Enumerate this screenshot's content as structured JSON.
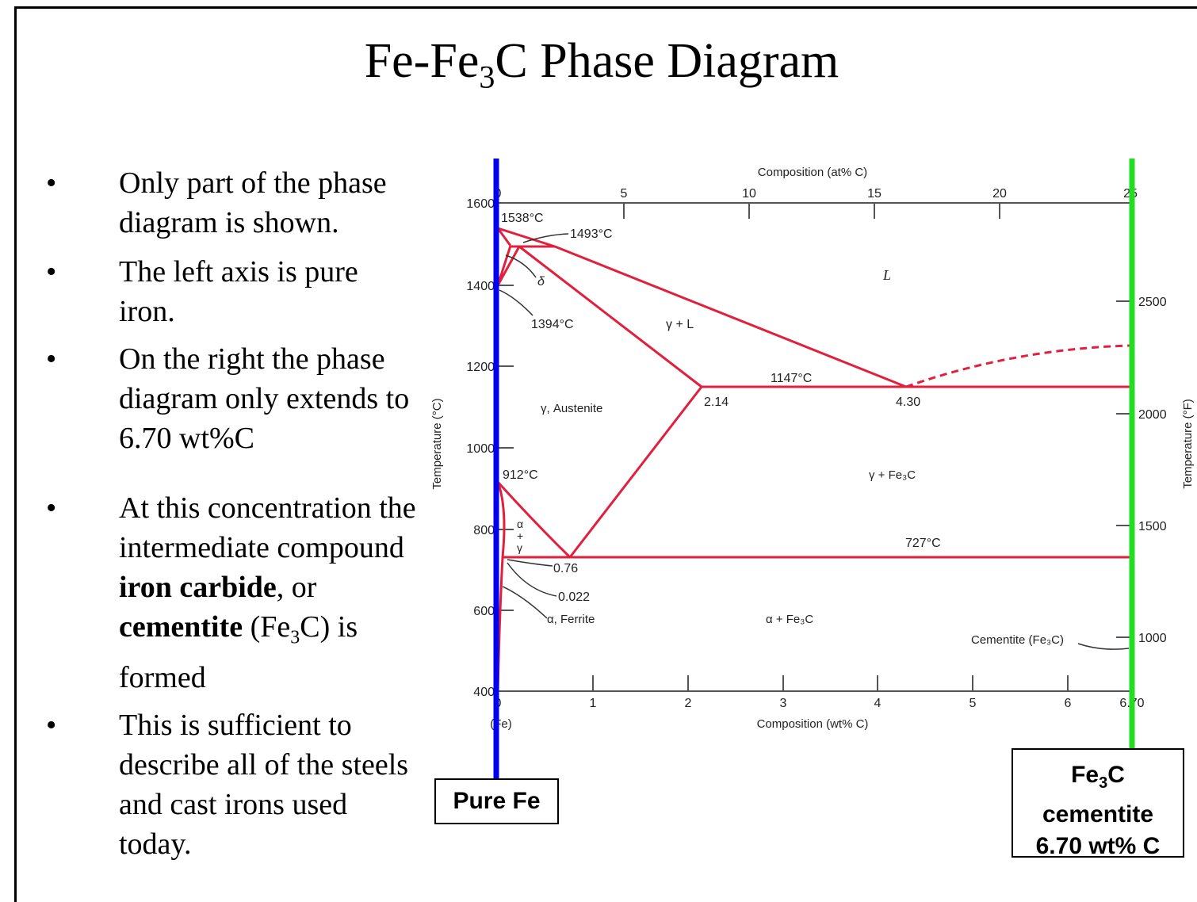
{
  "slide": {
    "title_prefix": "Fe-Fe",
    "title_sub": "3",
    "title_suffix": "C Phase Diagram"
  },
  "bullets": {
    "b1": "Only part of the phase diagram is shown.",
    "b2": "The left axis is pure iron.",
    "b3": "On the right the phase diagram only extends to 6.70 wt%C",
    "b4_pre": "At this concentration the intermediate compound ",
    "b4_bold1": "iron carbide",
    "b4_mid": ", or ",
    "b4_bold2": "cementite",
    "b4_paren": " (Fe",
    "b4_sub": "3",
    "b4_post": "C) is formed",
    "b5": "This is sufficient to describe all of the steels and cast irons used today.",
    "bullet_glyph": "•"
  },
  "diagram": {
    "top_axis_label": "Composition (at% C)",
    "bottom_axis_label": "Composition (wt% C)",
    "left_axis_label": "Temperature (°C)",
    "right_axis_label": "Temperature (°F)",
    "top_ticks": [
      "0",
      "5",
      "10",
      "15",
      "20",
      "25"
    ],
    "bottom_ticks": [
      "0",
      "1",
      "2",
      "3",
      "4",
      "5",
      "6",
      "6.70"
    ],
    "bottom_fe_label": "(Fe)",
    "left_ticks": [
      "1600",
      "1400",
      "1200",
      "1000",
      "800",
      "600",
      "400"
    ],
    "right_ticks": [
      "2500",
      "2000",
      "1500",
      "1000"
    ],
    "labels": {
      "t1538": "1538°C",
      "t1493": "1493°C",
      "delta": "δ",
      "t1394": "1394°C",
      "L": "L",
      "gammaL": "γ + L",
      "t1147": "1147°C",
      "c214": "2.14",
      "c430": "4.30",
      "austenite": "γ, Austenite",
      "t912": "912°C",
      "gamma_fe3c": "γ + Fe₃C",
      "alpha_plus_gamma_a": "α",
      "alpha_plus_gamma_p": "+",
      "alpha_plus_gamma_g": "γ",
      "t727": "727°C",
      "c076": "0.76",
      "c0022": "0.022",
      "ferrite": "α, Ferrite",
      "alpha_fe3c": "α + Fe₃C",
      "cementite": "Cementite (Fe₃C)"
    },
    "phase_line_color": "#e0203c",
    "left_bar_color": "#0000ee",
    "right_bar_color": "#22dd22"
  },
  "boxes": {
    "pure_fe": "Pure Fe",
    "fe3c_prefix": "Fe",
    "fe3c_sub": "3",
    "fe3c_suffix": "C",
    "fe3c_line2": "cementite",
    "fe3c_line3": "6.70 wt% C"
  }
}
